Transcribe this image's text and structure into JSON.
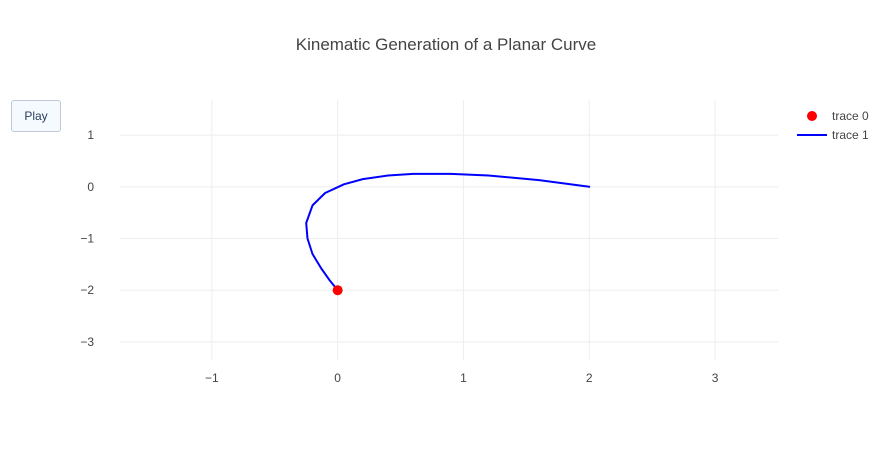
{
  "chart_data": {
    "type": "line",
    "title": "Kinematic Generation of a Planar Curve",
    "xlabel": "",
    "ylabel": "",
    "xlim": [
      -1.73,
      3.5
    ],
    "ylim": [
      -3.35,
      1.68
    ],
    "x_ticks": [
      -1,
      0,
      1,
      2,
      3
    ],
    "x_tick_labels": [
      "−1",
      "0",
      "1",
      "2",
      "3"
    ],
    "y_ticks": [
      1,
      0,
      -1,
      -2,
      -3
    ],
    "y_tick_labels": [
      "1",
      "0",
      "−1",
      "−2",
      "−3"
    ],
    "grid": true,
    "legend": "top-right",
    "series": [
      {
        "name": "trace 0",
        "mode": "markers",
        "color": "#ff0000",
        "x": [
          0
        ],
        "y": [
          -2
        ]
      },
      {
        "name": "trace 1",
        "mode": "lines",
        "color": "#0000ff",
        "x": [
          2.0,
          1.6,
          1.2,
          0.9,
          0.6,
          0.4,
          0.2,
          0.05,
          -0.1,
          -0.2,
          -0.25,
          -0.24,
          -0.2,
          -0.13,
          -0.06,
          0.0
        ],
        "y": [
          0.0,
          0.13,
          0.22,
          0.25,
          0.25,
          0.22,
          0.15,
          0.05,
          -0.12,
          -0.36,
          -0.7,
          -1.0,
          -1.3,
          -1.58,
          -1.82,
          -2.0
        ]
      }
    ]
  },
  "controls": {
    "play_label": "Play"
  }
}
